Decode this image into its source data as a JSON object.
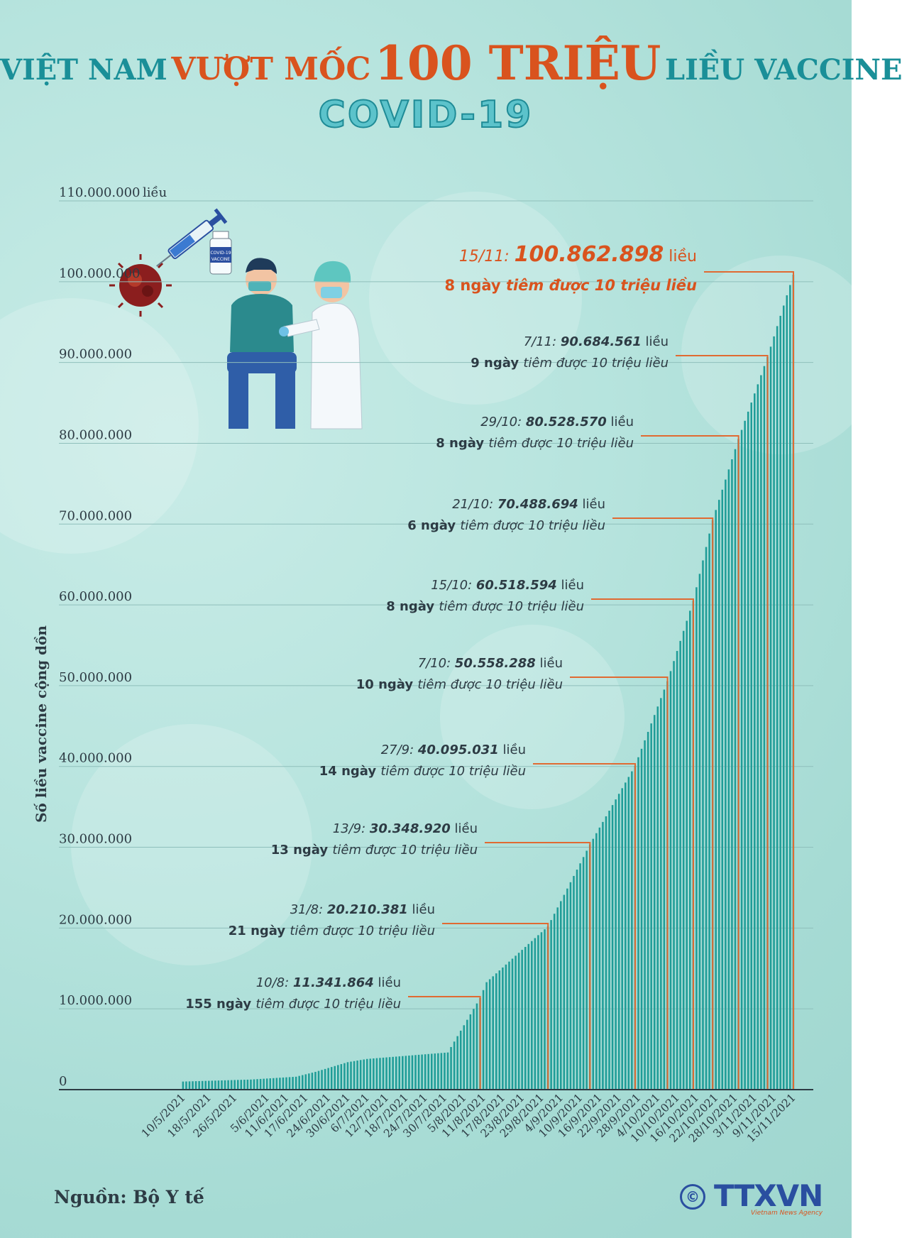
{
  "title": {
    "part1": "VIỆT NAM",
    "part2": "VƯỢT MỐC",
    "part3": "100 TRIỆU",
    "part4": "LIỀU VACCINE",
    "subtitle": "COVID-19"
  },
  "illustration": {
    "vial_label_top": "COVID-19",
    "vial_label_bottom": "VACCINE"
  },
  "source": "Nguồn: Bộ Y tế",
  "logo": {
    "text": "TTXVN",
    "subtitle": "Vietnam News Agency",
    "copyright": "©"
  },
  "colors": {
    "bar": "#1e9c97",
    "accent": "#e06a32",
    "title_teal": "#1a8f98",
    "title_orange": "#d9531e",
    "background": "#b7e4de"
  },
  "chart_data": {
    "type": "bar",
    "title": "VIỆT NAM VƯỢT MỐC 100 TRIỆU LIỀU VACCINE COVID-19",
    "ylabel": "Số liều vaccine cộng dồn",
    "ylim": [
      0,
      110000000
    ],
    "y_ticks": [
      0,
      10000000,
      20000000,
      30000000,
      40000000,
      50000000,
      60000000,
      70000000,
      80000000,
      90000000,
      100000000,
      110000000
    ],
    "y_tick_labels": [
      "0",
      "10.000.000",
      "20.000.000",
      "30.000.000",
      "40.000.000",
      "50.000.000",
      "60.000.000",
      "70.000.000",
      "80.000.000",
      "90.000.000",
      "100.000.000",
      "110.000.000"
    ],
    "y_top_unit": "liều",
    "grid": true,
    "x_tick_labels": [
      "10/5/2021",
      "18/5/2021",
      "26/5/2021",
      "5/6/2021",
      "11/6/2021",
      "17/6/2021",
      "24/6/2021",
      "30/6/2021",
      "6/7/2021",
      "12/7/2021",
      "18/7/2021",
      "24/7/2021",
      "30/7/2021",
      "5/8/2021",
      "11/8/2021",
      "17/8/2021",
      "23/8/2021",
      "29/8/2021",
      "4/9/2021",
      "10/9/2021",
      "16/9/2021",
      "22/9/2021",
      "28/9/2021",
      "4/10/2021",
      "10/10/2021",
      "16/10/2021",
      "22/10/2021",
      "28/10/2021",
      "3/11/2021",
      "9/11/2021",
      "15/11/2021"
    ],
    "key_points": [
      [
        "2021-05-10",
        1000000
      ],
      [
        "2021-05-31",
        1250000
      ],
      [
        "2021-06-14",
        1600000
      ],
      [
        "2021-06-20",
        2200000
      ],
      [
        "2021-06-30",
        3400000
      ],
      [
        "2021-07-06",
        3800000
      ],
      [
        "2021-07-31",
        4600000
      ],
      [
        "2021-08-10",
        11341864
      ],
      [
        "2021-08-12",
        13300000
      ],
      [
        "2021-08-31",
        20210381
      ],
      [
        "2021-09-13",
        30348920
      ],
      [
        "2021-09-27",
        40095031
      ],
      [
        "2021-10-07",
        50558288
      ],
      [
        "2021-10-15",
        60518594
      ],
      [
        "2021-10-21",
        70488694
      ],
      [
        "2021-10-29",
        80528570
      ],
      [
        "2021-11-07",
        90684561
      ],
      [
        "2021-11-15",
        100862898
      ]
    ],
    "annotations": [
      {
        "date": "10/8:",
        "value": "11.341.864",
        "unit": "liều",
        "days_bold": "155 ngày",
        "rest": "tiêm được 10 triệu liều"
      },
      {
        "date": "31/8:",
        "value": "20.210.381",
        "unit": "liều",
        "days_bold": "21 ngày",
        "rest": "tiêm được 10 triệu liều"
      },
      {
        "date": "13/9:",
        "value": "30.348.920",
        "unit": "liều",
        "days_bold": "13 ngày",
        "rest": "tiêm được 10 triệu liều"
      },
      {
        "date": "27/9:",
        "value": "40.095.031",
        "unit": "liều",
        "days_bold": "14 ngày",
        "rest": "tiêm được 10 triệu liều"
      },
      {
        "date": "7/10:",
        "value": "50.558.288",
        "unit": "liều",
        "days_bold": "10 ngày",
        "rest": "tiêm được 10 triệu liều"
      },
      {
        "date": "15/10:",
        "value": "60.518.594",
        "unit": "liều",
        "days_bold": "8 ngày",
        "rest": "tiêm được 10 triệu liều"
      },
      {
        "date": "21/10:",
        "value": "70.488.694",
        "unit": "liều",
        "days_bold": "6 ngày",
        "rest": "tiêm được 10 triệu liều"
      },
      {
        "date": "29/10:",
        "value": "80.528.570",
        "unit": "liều",
        "days_bold": "8 ngày",
        "rest": "tiêm được 10 triệu liều"
      },
      {
        "date": "7/11:",
        "value": "90.684.561",
        "unit": "liều",
        "days_bold": "9 ngày",
        "rest": "tiêm được 10 triệu liều"
      },
      {
        "date": "15/11:",
        "value": "100.862.898",
        "unit": "liều",
        "days_bold": "8 ngày",
        "rest": "tiêm được 10 triệu liều",
        "highlight": true
      }
    ]
  }
}
